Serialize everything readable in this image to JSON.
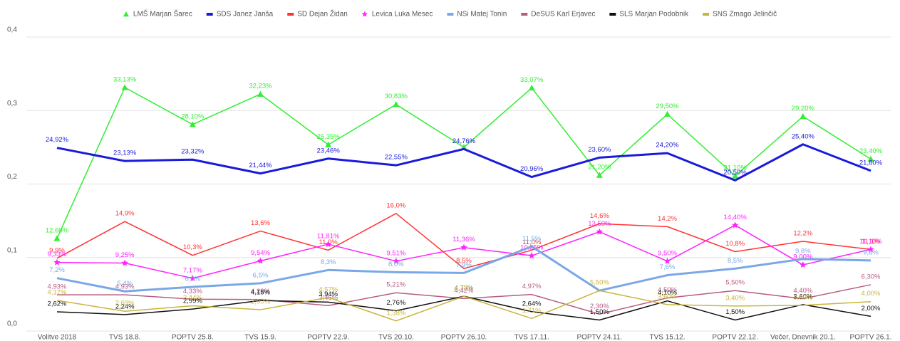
{
  "chart_data": {
    "type": "line",
    "categories": [
      "Volitve 2018",
      "TVS 18.8.",
      "POPTV 25.8.",
      "TVS 15.9.",
      "POPTV 22.9.",
      "TVS 20.10.",
      "POPTV 26.10.",
      "TVS 17.11.",
      "POPTV 24.11.",
      "TVS 15.12.",
      "POPTV 22.12.",
      "Večer, Dnevnik 20.1.",
      "POPTV 26.1."
    ],
    "ylim": [
      0,
      0.4
    ],
    "yticks": [
      {
        "value": 0,
        "label": "0,0"
      },
      {
        "value": 0.1,
        "label": "0,1"
      },
      {
        "value": 0.2,
        "label": "0,2"
      },
      {
        "value": 0.3,
        "label": "0,3"
      },
      {
        "value": 0.4,
        "label": "0,4"
      }
    ],
    "grid": true,
    "legend": "top",
    "series": [
      {
        "name": "LMŠ Marjan Šarec",
        "color": "#33ee33",
        "marker": "triangle",
        "line_width": 1.5,
        "values": [
          0.126,
          0.3313,
          0.281,
          0.3223,
          0.2535,
          0.3083,
          0.25,
          0.3307,
          0.212,
          0.295,
          0.211,
          0.292,
          0.234
        ],
        "value_labels": [
          "12,60%",
          "33,13%",
          "28,10%",
          "32,23%",
          "25,35%",
          "30,83%",
          null,
          "33,07%",
          "21,20%",
          "29,50%",
          "21,10%",
          "29,20%",
          "23,40%"
        ]
      },
      {
        "name": "SDS Janez Janša",
        "color": "#1a1adb",
        "marker": null,
        "line_width": 3,
        "values": [
          0.2492,
          0.2313,
          0.2332,
          0.2144,
          0.2346,
          0.2255,
          0.2476,
          0.2096,
          0.236,
          0.242,
          0.205,
          0.254,
          0.218
        ],
        "value_labels": [
          "24,92%",
          "23,13%",
          "23,32%",
          "21,44%",
          "23,46%",
          "22,55%",
          "24,76%",
          "20,96%",
          "23,60%",
          "24,20%",
          "20,50%",
          "25,40%",
          "21,80%"
        ]
      },
      {
        "name": "SD Dejan Židan",
        "color": "#ff3333",
        "marker": null,
        "line_width": 1.5,
        "values": [
          0.099,
          0.149,
          0.103,
          0.136,
          0.11,
          0.16,
          0.085,
          0.11,
          0.146,
          0.142,
          0.108,
          0.122,
          0.111
        ],
        "value_labels": [
          "9,9%",
          "14,9%",
          "10,3%",
          "13,6%",
          "11,0%",
          "16,0%",
          "8,5%",
          "11,0%",
          "14,6%",
          "14,2%",
          "10,8%",
          "12,2%",
          "11,1%"
        ]
      },
      {
        "name": "Levica Luka Mesec",
        "color": "#ff22ff",
        "marker": "star",
        "line_width": 1.5,
        "values": [
          0.0933,
          0.0925,
          0.0717,
          0.0954,
          0.1181,
          0.0951,
          0.1136,
          0.1025,
          0.135,
          0.095,
          0.144,
          0.09,
          0.111
        ],
        "value_labels": [
          "9,33%",
          "9,25%",
          "7,17%",
          "9,54%",
          "11,81%",
          "9,51%",
          "11,36%",
          "10,25%",
          "13,50%",
          "9,50%",
          "14,40%",
          "9,00%",
          "11,10%"
        ]
      },
      {
        "name": "NSi Matej Tonin",
        "color": "#7aa8e6",
        "marker": null,
        "line_width": 3,
        "values": [
          0.072,
          0.054,
          0.06,
          0.065,
          0.083,
          0.08,
          0.079,
          0.115,
          0.055,
          0.076,
          0.085,
          0.098,
          0.096
        ],
        "value_labels": [
          "7,2%",
          "5,4%",
          "6,0%",
          "6,5%",
          "8,3%",
          "8,0%",
          "7,9%",
          "11,5%",
          null,
          "7,6%",
          "8,5%",
          "9,8%",
          "9,6%"
        ]
      },
      {
        "name": "DeSUS Karl Erjavec",
        "color": "#b85c86",
        "marker": null,
        "line_width": 1.5,
        "values": [
          0.0493,
          0.0493,
          0.0433,
          0.0429,
          0.0346,
          0.0521,
          0.0442,
          0.0497,
          0.023,
          0.045,
          0.055,
          0.044,
          0.063
        ],
        "value_labels": [
          "4,93%",
          "4,93%",
          "4,33%",
          "4,29%",
          "3,46%",
          "5,21%",
          "4,42%",
          "4,97%",
          "2,30%",
          "4,50%",
          "5,50%",
          "4,40%",
          "6,30%"
        ]
      },
      {
        "name": "SLS Marjan Podobnik",
        "color": "#111111",
        "marker": null,
        "line_width": 1.5,
        "values": [
          0.0262,
          0.0224,
          0.0299,
          0.0415,
          0.0394,
          0.0276,
          0.0473,
          0.0264,
          0.015,
          0.041,
          0.015,
          0.036,
          0.02
        ],
        "value_labels": [
          "2,62%",
          "2,24%",
          "2,99%",
          "4,15%",
          "3,94%",
          "2,76%",
          "4,73%",
          "2,64%",
          "1,50%",
          "4,10%",
          "1,50%",
          "3,60%",
          "2,00%"
        ]
      },
      {
        "name": "SNS Zmago Jelinčič",
        "color": "#c9b53a",
        "marker": null,
        "line_width": 1.5,
        "values": [
          0.0417,
          0.0269,
          0.0344,
          0.029,
          0.0457,
          0.0138,
          0.0473,
          0.0171,
          0.055,
          0.036,
          0.034,
          0.035,
          0.04
        ],
        "value_labels": [
          "4,17%",
          "2,69%",
          "3,44%",
          "2,90%",
          "4,57%",
          "1,38%",
          "4,73%",
          "1,71%",
          "5,50%",
          "3,60%",
          "3,40%",
          "3,50%",
          "4,00%"
        ]
      }
    ]
  }
}
